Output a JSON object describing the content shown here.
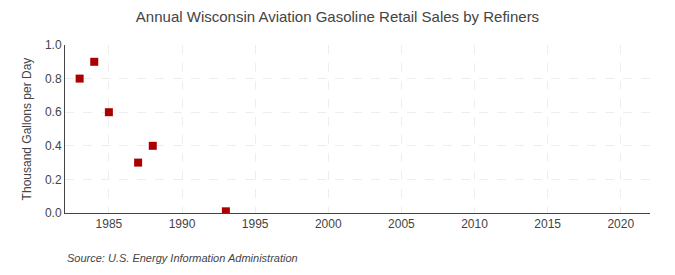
{
  "chart_data": {
    "type": "scatter",
    "title": "Annual Wisconsin Aviation Gasoline Retail Sales by Refiners",
    "ylabel": "Thousand Gallons per Day",
    "annotations": [
      "Source: U.S. Energy Information Administration"
    ],
    "x": [
      1983,
      1984,
      1985,
      1987,
      1988,
      1993
    ],
    "values": [
      0.8,
      0.9,
      0.6,
      0.3,
      0.4,
      0.01
    ],
    "color": "#aa0000",
    "marker": "square",
    "xlim": [
      1982,
      2022
    ],
    "ylim": [
      0.0,
      1.0
    ],
    "xticks": [
      1985,
      1990,
      1995,
      2000,
      2005,
      2010,
      2015,
      2020
    ],
    "yticks": [
      {
        "value": 0.0,
        "label": "0.0"
      },
      0.2,
      0.4,
      0.6,
      0.8,
      {
        "value": 1.0,
        "label": "1.0"
      }
    ],
    "grid": true
  }
}
